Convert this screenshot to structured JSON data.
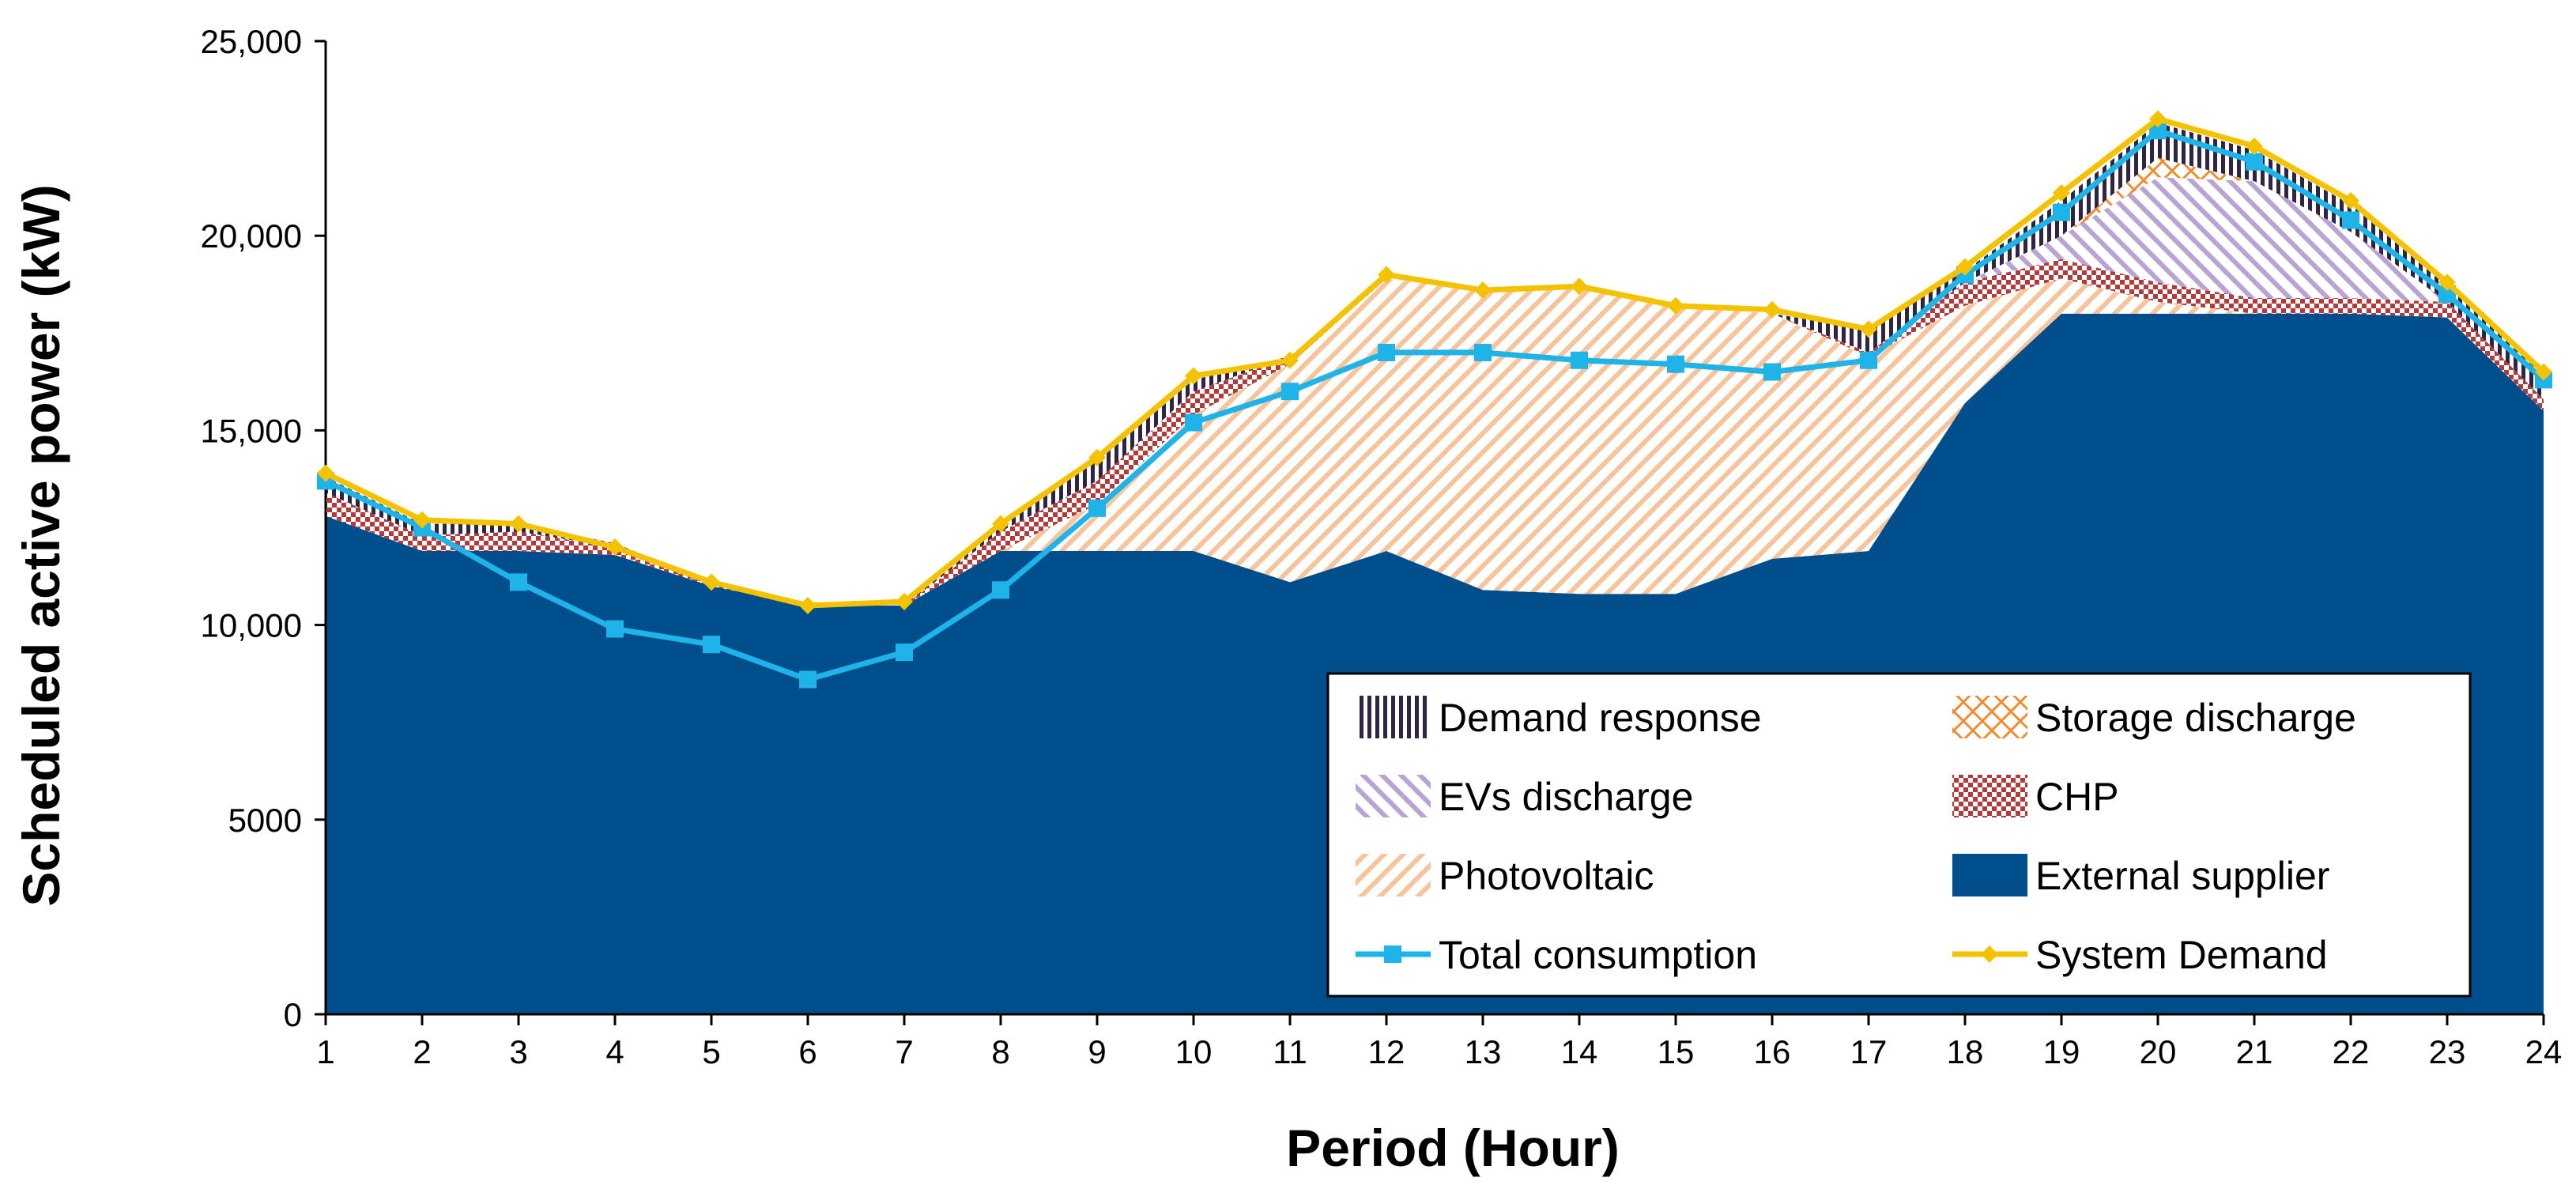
{
  "chart_data": {
    "type": "area",
    "title": "",
    "xlabel": "Period (Hour)",
    "ylabel": "Scheduled active power (kW)",
    "ylim": [
      0,
      25000
    ],
    "yticks": [
      0,
      5000,
      10000,
      15000,
      20000,
      25000
    ],
    "ytick_labels": [
      "0",
      "5000",
      "10,000",
      "15,000",
      "20,000",
      "25,000"
    ],
    "categories": [
      "1",
      "2",
      "3",
      "4",
      "5",
      "6",
      "7",
      "8",
      "9",
      "10",
      "11",
      "12",
      "13",
      "14",
      "15",
      "16",
      "17",
      "18",
      "19",
      "20",
      "21",
      "22",
      "23",
      "24"
    ],
    "stacked_series": [
      {
        "name": "External supplier",
        "pattern": "solid",
        "values": [
          12800,
          11900,
          11900,
          11800,
          11000,
          10500,
          10500,
          11900,
          11900,
          11900,
          11100,
          11900,
          10900,
          10800,
          10800,
          11700,
          11900,
          15700,
          18000,
          18000,
          18000,
          18000,
          17900,
          15500
        ]
      },
      {
        "name": "Photovoltaic",
        "pattern": "diagonal",
        "values": [
          0,
          0,
          0,
          0,
          0,
          0,
          0,
          0,
          1200,
          3500,
          5600,
          7000,
          7700,
          7900,
          7400,
          6300,
          5000,
          2500,
          900,
          300,
          0,
          0,
          0,
          0
        ]
      },
      {
        "name": "CHP",
        "pattern": "checker",
        "values": [
          600,
          400,
          500,
          200,
          0,
          0,
          0,
          500,
          600,
          600,
          200,
          0,
          0,
          0,
          0,
          0,
          100,
          600,
          500,
          500,
          400,
          400,
          400,
          300
        ]
      },
      {
        "name": "EVs discharge",
        "pattern": "diagonal-reverse",
        "values": [
          0,
          0,
          0,
          0,
          0,
          0,
          0,
          0,
          0,
          0,
          0,
          0,
          0,
          0,
          0,
          0,
          0,
          0,
          600,
          2700,
          3000,
          1700,
          0,
          0
        ]
      },
      {
        "name": "Storage discharge",
        "pattern": "crosshatch",
        "values": [
          0,
          0,
          0,
          0,
          0,
          0,
          0,
          0,
          0,
          0,
          0,
          0,
          0,
          0,
          0,
          0,
          0,
          0,
          0,
          500,
          0,
          0,
          0,
          0
        ]
      },
      {
        "name": "Demand response",
        "pattern": "vertical",
        "values": [
          400,
          300,
          200,
          100,
          100,
          0,
          0,
          200,
          500,
          300,
          0,
          0,
          0,
          0,
          0,
          0,
          600,
          300,
          900,
          900,
          800,
          700,
          400,
          700
        ]
      }
    ],
    "line_series": [
      {
        "name": "Total consumption",
        "marker": "square",
        "values": [
          13700,
          12500,
          11100,
          9900,
          9500,
          8600,
          9300,
          10900,
          13000,
          15200,
          16000,
          17000,
          17000,
          16800,
          16700,
          16500,
          16800,
          19000,
          20600,
          22700,
          21900,
          20400,
          18500,
          16300
        ]
      },
      {
        "name": "System Demand",
        "marker": "diamond",
        "values": [
          13900,
          12700,
          12600,
          12000,
          11100,
          10500,
          10600,
          12600,
          14300,
          16400,
          16800,
          19000,
          18600,
          18700,
          18200,
          18100,
          17600,
          19200,
          21100,
          23000,
          22300,
          20900,
          18800,
          16500
        ]
      }
    ],
    "legend": {
      "position": "bottom-right",
      "entries": [
        "Demand response",
        "Storage discharge",
        "EVs discharge",
        "CHP",
        "Photovoltaic",
        "External supplier",
        "Total consumption",
        "System Demand"
      ]
    },
    "grid": false
  },
  "colors": {
    "external_supplier": "#004f8c",
    "photovoltaic": "#f6c59b",
    "chp": "#b33a3a",
    "evs_discharge": "#b9a3d3",
    "storage_discharge": "#f28a30",
    "demand_response": "#2f2346",
    "total_consumption": "#1eb4ea",
    "system_demand": "#f5c200",
    "axis": "#000000"
  }
}
